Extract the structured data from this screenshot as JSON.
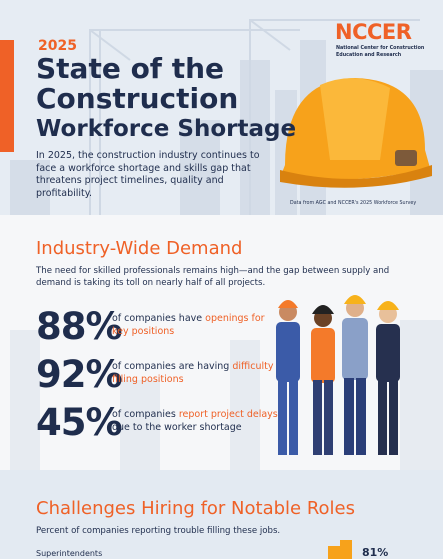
{
  "header": {
    "year": "2025",
    "title": [
      "State of the",
      "Construction",
      "Workforce Shortage"
    ],
    "logo": "NCCER",
    "logo_subtitle": [
      "National Center for Construction",
      "Education and Research"
    ],
    "intro": "In 2025, the construction industry continues to face a workforce shortage and skills gap that threatens project timelines, quality and profitability.",
    "source": "Data from AGC and NCCER's 2025 Workforce Survey"
  },
  "demand": {
    "title": "Industry-Wide Demand",
    "text": "The need for skilled professionals remains high—and the gap between supply and demand is taking its toll on nearly half of all projects.",
    "stats": [
      {
        "value": "88%",
        "before": "of companies have",
        "highlight": "openings for key positions",
        "after": ""
      },
      {
        "value": "92%",
        "before": "of companies are having",
        "highlight": "difficulty filling positions",
        "after": ""
      },
      {
        "value": "45%",
        "before": "of companies",
        "highlight": "report project delays",
        "after": "due to the worker shortage"
      }
    ]
  },
  "roles": {
    "title": "Challenges Hiring for Notable Roles",
    "subtitle": "Percent of companies reporting trouble filling these jobs.",
    "rows": [
      {
        "label": "Superintendents",
        "value": "81%"
      }
    ]
  }
}
